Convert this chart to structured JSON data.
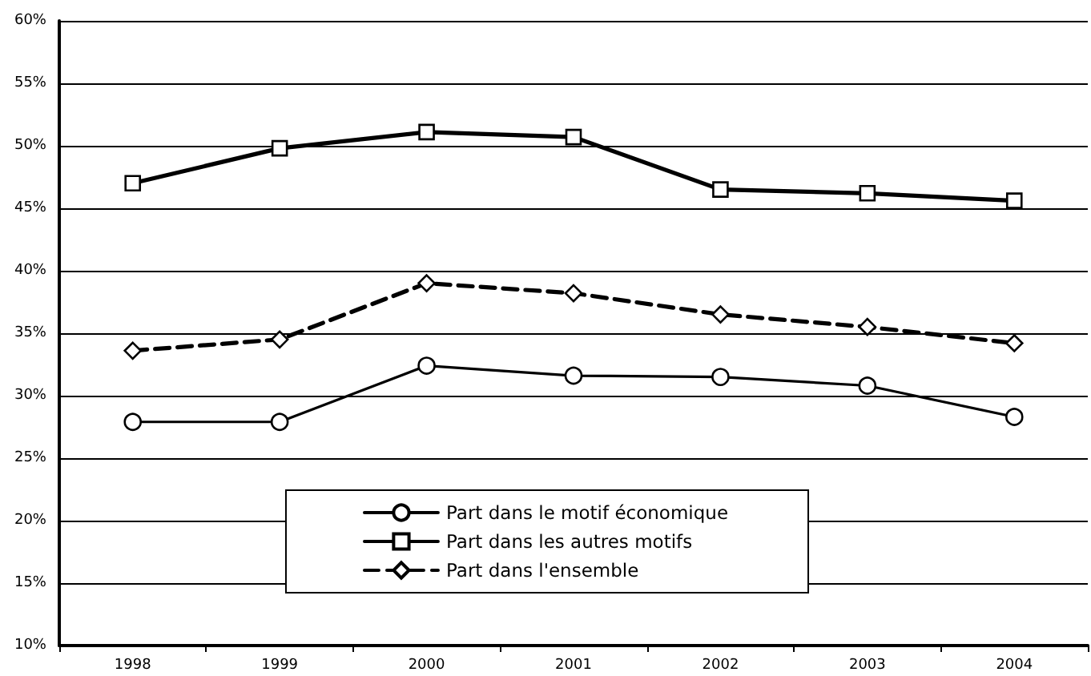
{
  "chart_data": {
    "type": "line",
    "categories": [
      "1998",
      "1999",
      "2000",
      "2001",
      "2002",
      "2003",
      "2004"
    ],
    "series": [
      {
        "name": "Part dans le motif économique",
        "color": "#000000",
        "marker": "circle",
        "line_style": "solid",
        "values": [
          27.9,
          27.9,
          32.4,
          31.6,
          31.5,
          30.8,
          28.3
        ]
      },
      {
        "name": "Part dans les autres motifs",
        "color": "#000000",
        "marker": "square",
        "line_style": "solid",
        "values": [
          47.0,
          49.8,
          51.1,
          50.7,
          46.5,
          46.2,
          45.6
        ]
      },
      {
        "name": "Part dans l'ensemble",
        "color": "#000000",
        "marker": "diamond",
        "line_style": "dashed",
        "values": [
          33.6,
          34.5,
          39.0,
          38.2,
          36.5,
          35.5,
          34.2
        ]
      }
    ],
    "ylim": [
      10,
      60
    ],
    "yticks": [
      {
        "value": 10,
        "label": "10%"
      },
      {
        "value": 15,
        "label": "15%"
      },
      {
        "value": 20,
        "label": "20%"
      },
      {
        "value": 25,
        "label": "25%"
      },
      {
        "value": 30,
        "label": "30%"
      },
      {
        "value": 35,
        "label": "35%"
      },
      {
        "value": 40,
        "label": "40%"
      },
      {
        "value": 45,
        "label": "45%"
      },
      {
        "value": 50,
        "label": "50%"
      },
      {
        "value": 55,
        "label": "55%"
      },
      {
        "value": 60,
        "label": "60%"
      }
    ],
    "grid": "y",
    "legend": "bottom"
  }
}
